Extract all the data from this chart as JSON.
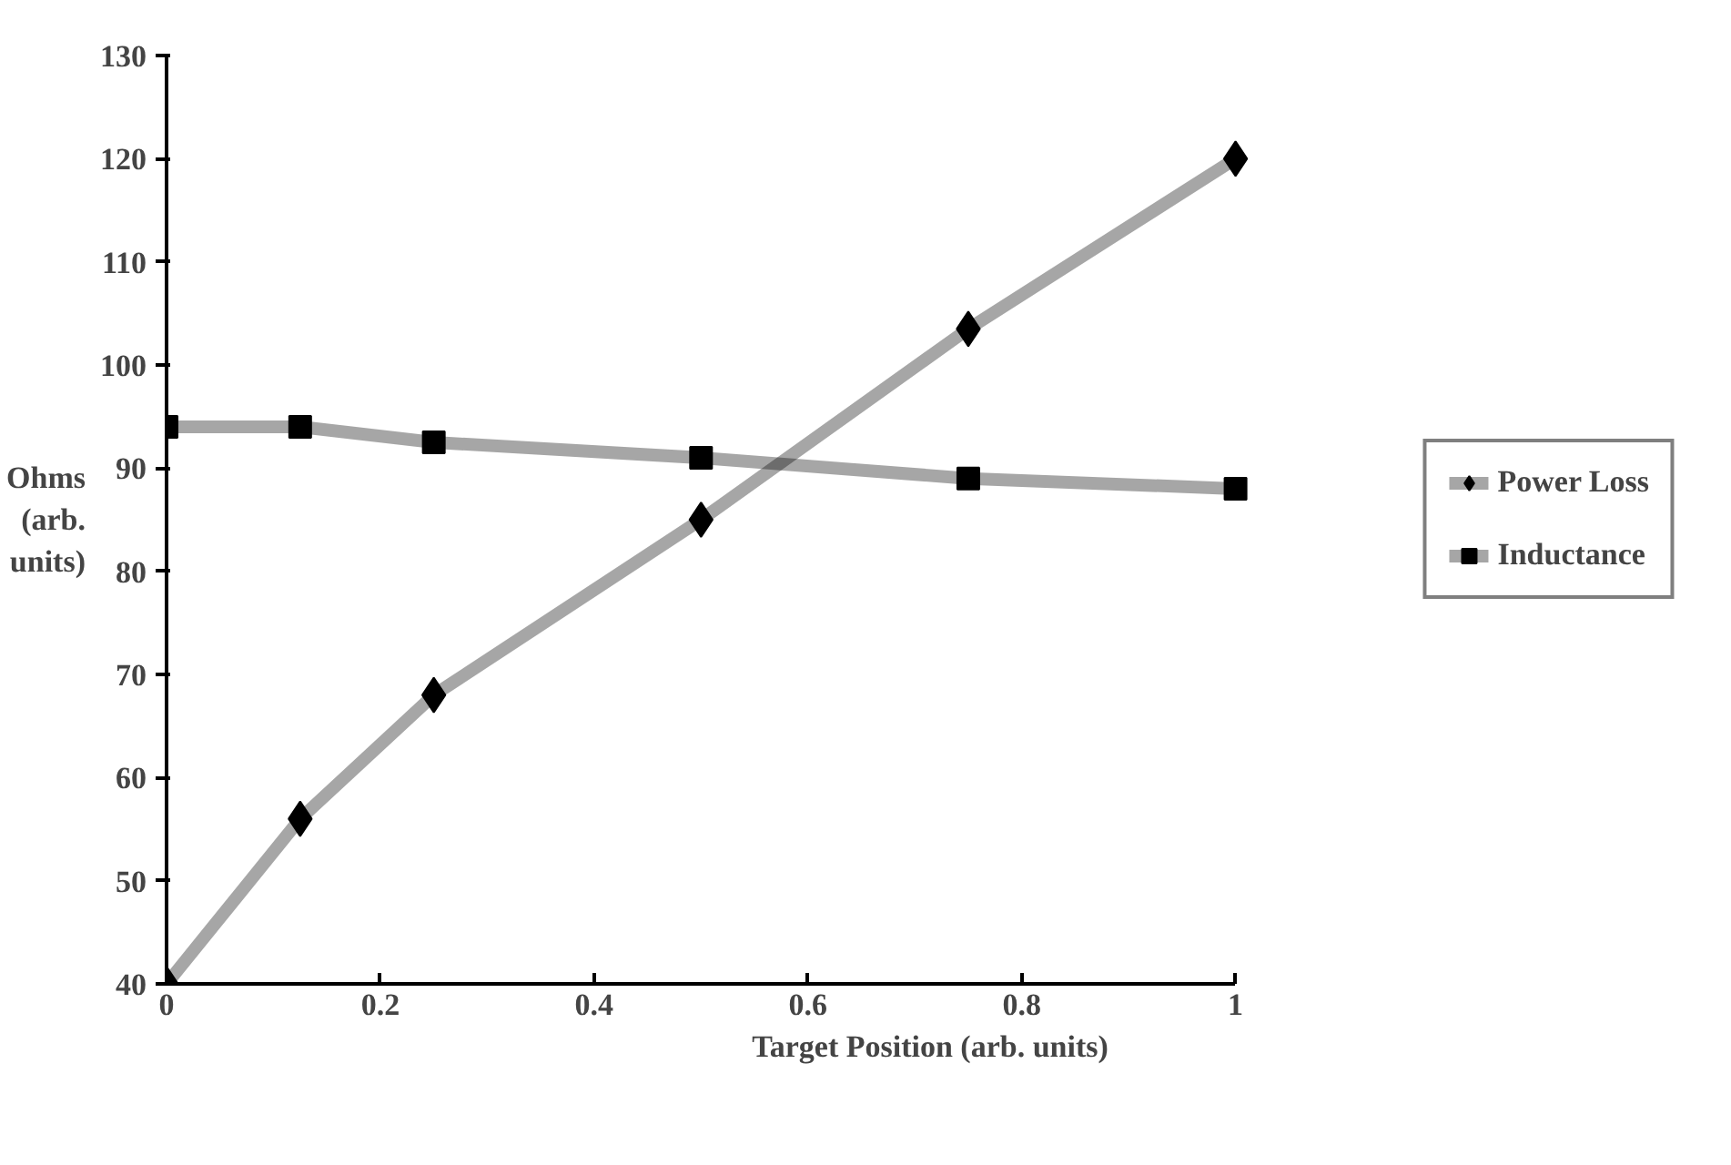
{
  "chart_data": {
    "type": "line",
    "xlabel": "Target Position (arb. units)",
    "ylabel": "Ohms\n(arb.\nunits)",
    "xlim": [
      0,
      1
    ],
    "xticks": [
      0,
      {
        "value": 0.2,
        "label": "0.2"
      },
      {
        "value": 0.4,
        "label": "0.4"
      },
      {
        "value": 0.6,
        "label": "0.6"
      },
      {
        "value": 0.8,
        "label": "0.8"
      },
      1
    ],
    "ylim": [
      40,
      130
    ],
    "yticks": [
      40,
      50,
      60,
      70,
      80,
      90,
      100,
      110,
      120,
      130
    ],
    "grid": false,
    "legend": "right",
    "line_style": "solid",
    "series": [
      {
        "name": "Power Loss",
        "color": "#000000",
        "marker": "diamond",
        "x": [
          0,
          0.125,
          0.25,
          0.5,
          0.75,
          1
        ],
        "values": [
          40,
          56,
          68,
          85,
          103.5,
          120
        ]
      },
      {
        "name": "Inductance",
        "color": "#000000",
        "marker": "square",
        "x": [
          0,
          0.125,
          0.25,
          0.5,
          0.75,
          1
        ],
        "values": [
          94,
          94,
          92.5,
          91,
          89,
          88
        ]
      }
    ]
  }
}
